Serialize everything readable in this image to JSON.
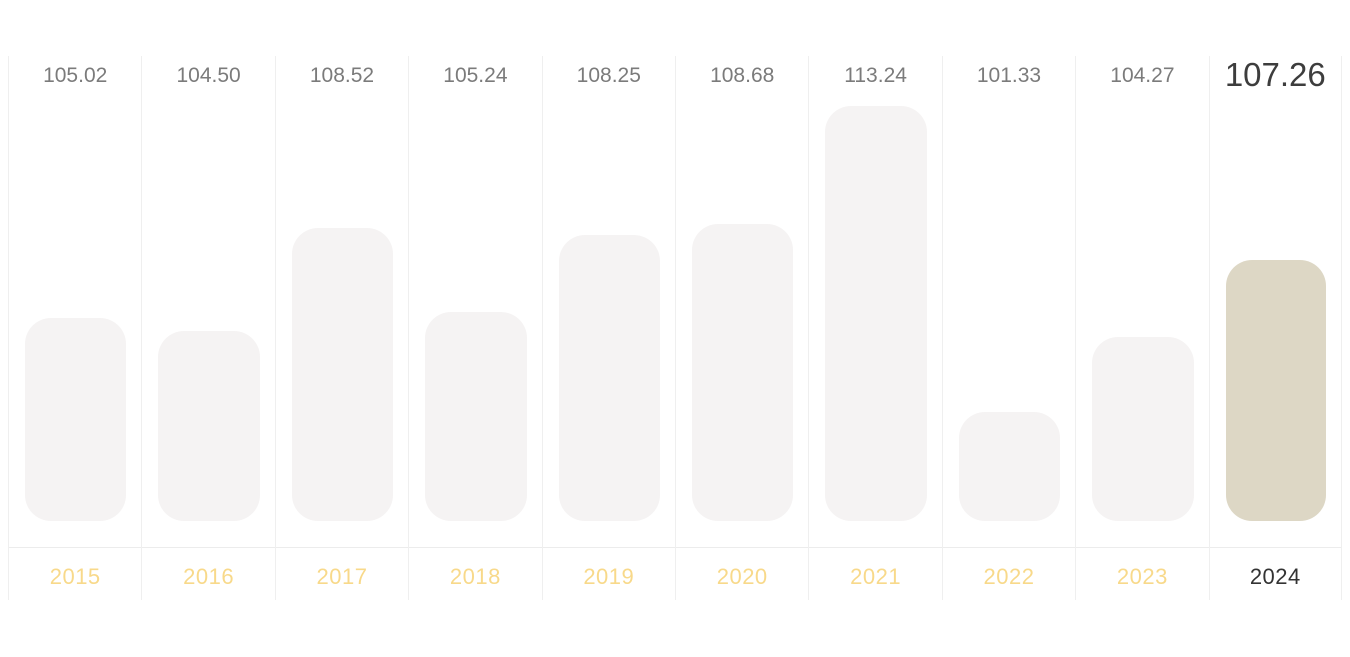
{
  "chart_data": {
    "type": "bar",
    "categories": [
      "2015",
      "2016",
      "2017",
      "2018",
      "2019",
      "2020",
      "2021",
      "2022",
      "2023",
      "2024"
    ],
    "values": [
      105.02,
      104.5,
      108.52,
      105.24,
      108.25,
      108.68,
      113.24,
      101.33,
      104.27,
      107.26
    ],
    "value_labels": [
      "105.02",
      "104.50",
      "108.52",
      "105.24",
      "108.25",
      "108.68",
      "113.24",
      "101.33",
      "104.27",
      "107.26"
    ],
    "highlighted_category": "2024",
    "ylim": [
      97.1,
      115.2
    ],
    "grid": false,
    "colors": {
      "bar": "#f5f3f3",
      "bar_highlight": "#ddd7c5",
      "year_label": "#f8d98a",
      "year_label_highlight": "#333333",
      "value_label": "#7b7b7b",
      "value_label_highlight": "#3d3d3d"
    }
  }
}
